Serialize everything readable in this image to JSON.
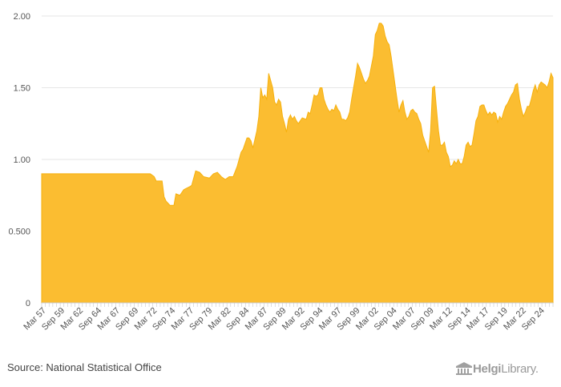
{
  "chart_data": {
    "type": "area",
    "title": "",
    "xlabel": "",
    "ylabel": "",
    "ylim": [
      0,
      2.0
    ],
    "yticks": [
      0,
      0.5,
      1.0,
      1.5,
      2.0
    ],
    "ytick_labels": [
      "0",
      "0.500",
      "1.00",
      "1.50",
      "2.00"
    ],
    "grid": true,
    "x_count": 270,
    "xtick_labels": [
      "Mar 57",
      "Sep 59",
      "Mar 62",
      "Sep 64",
      "Mar 67",
      "Sep 69",
      "Mar 72",
      "Sep 74",
      "Mar 77",
      "Sep 79",
      "Mar 82",
      "Sep 84",
      "Mar 87",
      "Sep 89",
      "Mar 92",
      "Sep 94",
      "Mar 97",
      "Sep 99",
      "Mar 02",
      "Sep 04",
      "Mar 07",
      "Sep 09",
      "Mar 12",
      "Sep 14",
      "Mar 17",
      "Sep 19",
      "Mar 22",
      "Sep 24"
    ],
    "color": "#fbbd31",
    "series": [
      {
        "name": "value",
        "keypoints": [
          [
            0,
            0.9
          ],
          [
            55,
            0.9
          ],
          [
            57,
            0.88
          ],
          [
            58,
            0.85
          ],
          [
            61,
            0.85
          ],
          [
            62,
            0.74
          ],
          [
            63,
            0.71
          ],
          [
            65,
            0.68
          ],
          [
            67,
            0.68
          ],
          [
            68,
            0.76
          ],
          [
            70,
            0.75
          ],
          [
            72,
            0.79
          ],
          [
            75,
            0.81
          ],
          [
            76,
            0.82
          ],
          [
            78,
            0.92
          ],
          [
            80,
            0.91
          ],
          [
            82,
            0.88
          ],
          [
            85,
            0.87
          ],
          [
            87,
            0.9
          ],
          [
            89,
            0.91
          ],
          [
            91,
            0.88
          ],
          [
            93,
            0.86
          ],
          [
            95,
            0.88
          ],
          [
            97,
            0.88
          ],
          [
            99,
            0.95
          ],
          [
            101,
            1.05
          ],
          [
            102,
            1.07
          ],
          [
            104,
            1.15
          ],
          [
            105,
            1.15
          ],
          [
            106,
            1.13
          ],
          [
            107,
            1.08
          ],
          [
            109,
            1.2
          ],
          [
            110,
            1.3
          ],
          [
            111,
            1.5
          ],
          [
            112,
            1.43
          ],
          [
            113,
            1.45
          ],
          [
            114,
            1.42
          ],
          [
            115,
            1.6
          ],
          [
            116,
            1.55
          ],
          [
            117,
            1.5
          ],
          [
            118,
            1.4
          ],
          [
            119,
            1.38
          ],
          [
            120,
            1.42
          ],
          [
            121,
            1.4
          ],
          [
            122,
            1.3
          ],
          [
            123,
            1.25
          ],
          [
            124,
            1.19
          ],
          [
            125,
            1.28
          ],
          [
            126,
            1.31
          ],
          [
            127,
            1.28
          ],
          [
            128,
            1.3
          ],
          [
            129,
            1.27
          ],
          [
            130,
            1.25
          ],
          [
            131,
            1.27
          ],
          [
            132,
            1.29
          ],
          [
            134,
            1.28
          ],
          [
            135,
            1.33
          ],
          [
            136,
            1.32
          ],
          [
            137,
            1.38
          ],
          [
            138,
            1.45
          ],
          [
            139,
            1.44
          ],
          [
            140,
            1.45
          ],
          [
            141,
            1.5
          ],
          [
            142,
            1.5
          ],
          [
            143,
            1.42
          ],
          [
            144,
            1.38
          ],
          [
            145,
            1.35
          ],
          [
            146,
            1.33
          ],
          [
            147,
            1.35
          ],
          [
            148,
            1.34
          ],
          [
            149,
            1.38
          ],
          [
            150,
            1.35
          ],
          [
            151,
            1.33
          ],
          [
            152,
            1.28
          ],
          [
            153,
            1.28
          ],
          [
            154,
            1.27
          ],
          [
            155,
            1.29
          ],
          [
            156,
            1.33
          ],
          [
            157,
            1.42
          ],
          [
            158,
            1.5
          ],
          [
            159,
            1.58
          ],
          [
            160,
            1.67
          ],
          [
            161,
            1.64
          ],
          [
            162,
            1.6
          ],
          [
            163,
            1.56
          ],
          [
            164,
            1.53
          ],
          [
            165,
            1.55
          ],
          [
            166,
            1.58
          ],
          [
            167,
            1.65
          ],
          [
            168,
            1.72
          ],
          [
            169,
            1.87
          ],
          [
            170,
            1.9
          ],
          [
            171,
            1.95
          ],
          [
            172,
            1.95
          ],
          [
            173,
            1.93
          ],
          [
            174,
            1.86
          ],
          [
            175,
            1.82
          ],
          [
            176,
            1.8
          ],
          [
            177,
            1.72
          ],
          [
            178,
            1.62
          ],
          [
            179,
            1.52
          ],
          [
            180,
            1.42
          ],
          [
            181,
            1.33
          ],
          [
            182,
            1.38
          ],
          [
            183,
            1.41
          ],
          [
            184,
            1.33
          ],
          [
            185,
            1.28
          ],
          [
            186,
            1.3
          ],
          [
            187,
            1.34
          ],
          [
            188,
            1.35
          ],
          [
            189,
            1.33
          ],
          [
            190,
            1.32
          ],
          [
            191,
            1.28
          ],
          [
            192,
            1.25
          ],
          [
            193,
            1.17
          ],
          [
            194,
            1.13
          ],
          [
            195,
            1.09
          ],
          [
            196,
            1.05
          ],
          [
            197,
            1.2
          ],
          [
            198,
            1.5
          ],
          [
            199,
            1.51
          ],
          [
            200,
            1.35
          ],
          [
            201,
            1.2
          ],
          [
            202,
            1.1
          ],
          [
            203,
            1.1
          ],
          [
            204,
            1.12
          ],
          [
            205,
            1.05
          ],
          [
            206,
            1.02
          ],
          [
            207,
            0.95
          ],
          [
            208,
            0.96
          ],
          [
            209,
            0.99
          ],
          [
            210,
            0.97
          ],
          [
            211,
            1.0
          ],
          [
            212,
            0.97
          ],
          [
            213,
            0.97
          ],
          [
            214,
            1.02
          ],
          [
            215,
            1.1
          ],
          [
            216,
            1.12
          ],
          [
            217,
            1.09
          ],
          [
            218,
            1.1
          ],
          [
            219,
            1.18
          ],
          [
            220,
            1.27
          ],
          [
            221,
            1.3
          ],
          [
            222,
            1.37
          ],
          [
            223,
            1.38
          ],
          [
            224,
            1.38
          ],
          [
            225,
            1.34
          ],
          [
            226,
            1.31
          ],
          [
            227,
            1.33
          ],
          [
            228,
            1.31
          ],
          [
            229,
            1.33
          ],
          [
            230,
            1.32
          ],
          [
            231,
            1.26
          ],
          [
            232,
            1.3
          ],
          [
            233,
            1.28
          ],
          [
            234,
            1.33
          ],
          [
            235,
            1.37
          ],
          [
            236,
            1.39
          ],
          [
            237,
            1.42
          ],
          [
            238,
            1.45
          ],
          [
            239,
            1.47
          ],
          [
            240,
            1.52
          ],
          [
            241,
            1.53
          ],
          [
            242,
            1.42
          ],
          [
            243,
            1.35
          ],
          [
            244,
            1.3
          ],
          [
            245,
            1.33
          ],
          [
            246,
            1.37
          ],
          [
            247,
            1.37
          ],
          [
            248,
            1.42
          ],
          [
            249,
            1.48
          ],
          [
            250,
            1.52
          ],
          [
            251,
            1.47
          ],
          [
            252,
            1.52
          ],
          [
            253,
            1.54
          ],
          [
            254,
            1.53
          ],
          [
            255,
            1.52
          ],
          [
            256,
            1.5
          ],
          [
            257,
            1.54
          ],
          [
            258,
            1.6
          ],
          [
            259,
            1.57
          ]
        ]
      }
    ]
  },
  "footer": {
    "source": "Source: National Statistical Office",
    "logo_text_bold": "Helgi",
    "logo_text_light": "Library."
  }
}
